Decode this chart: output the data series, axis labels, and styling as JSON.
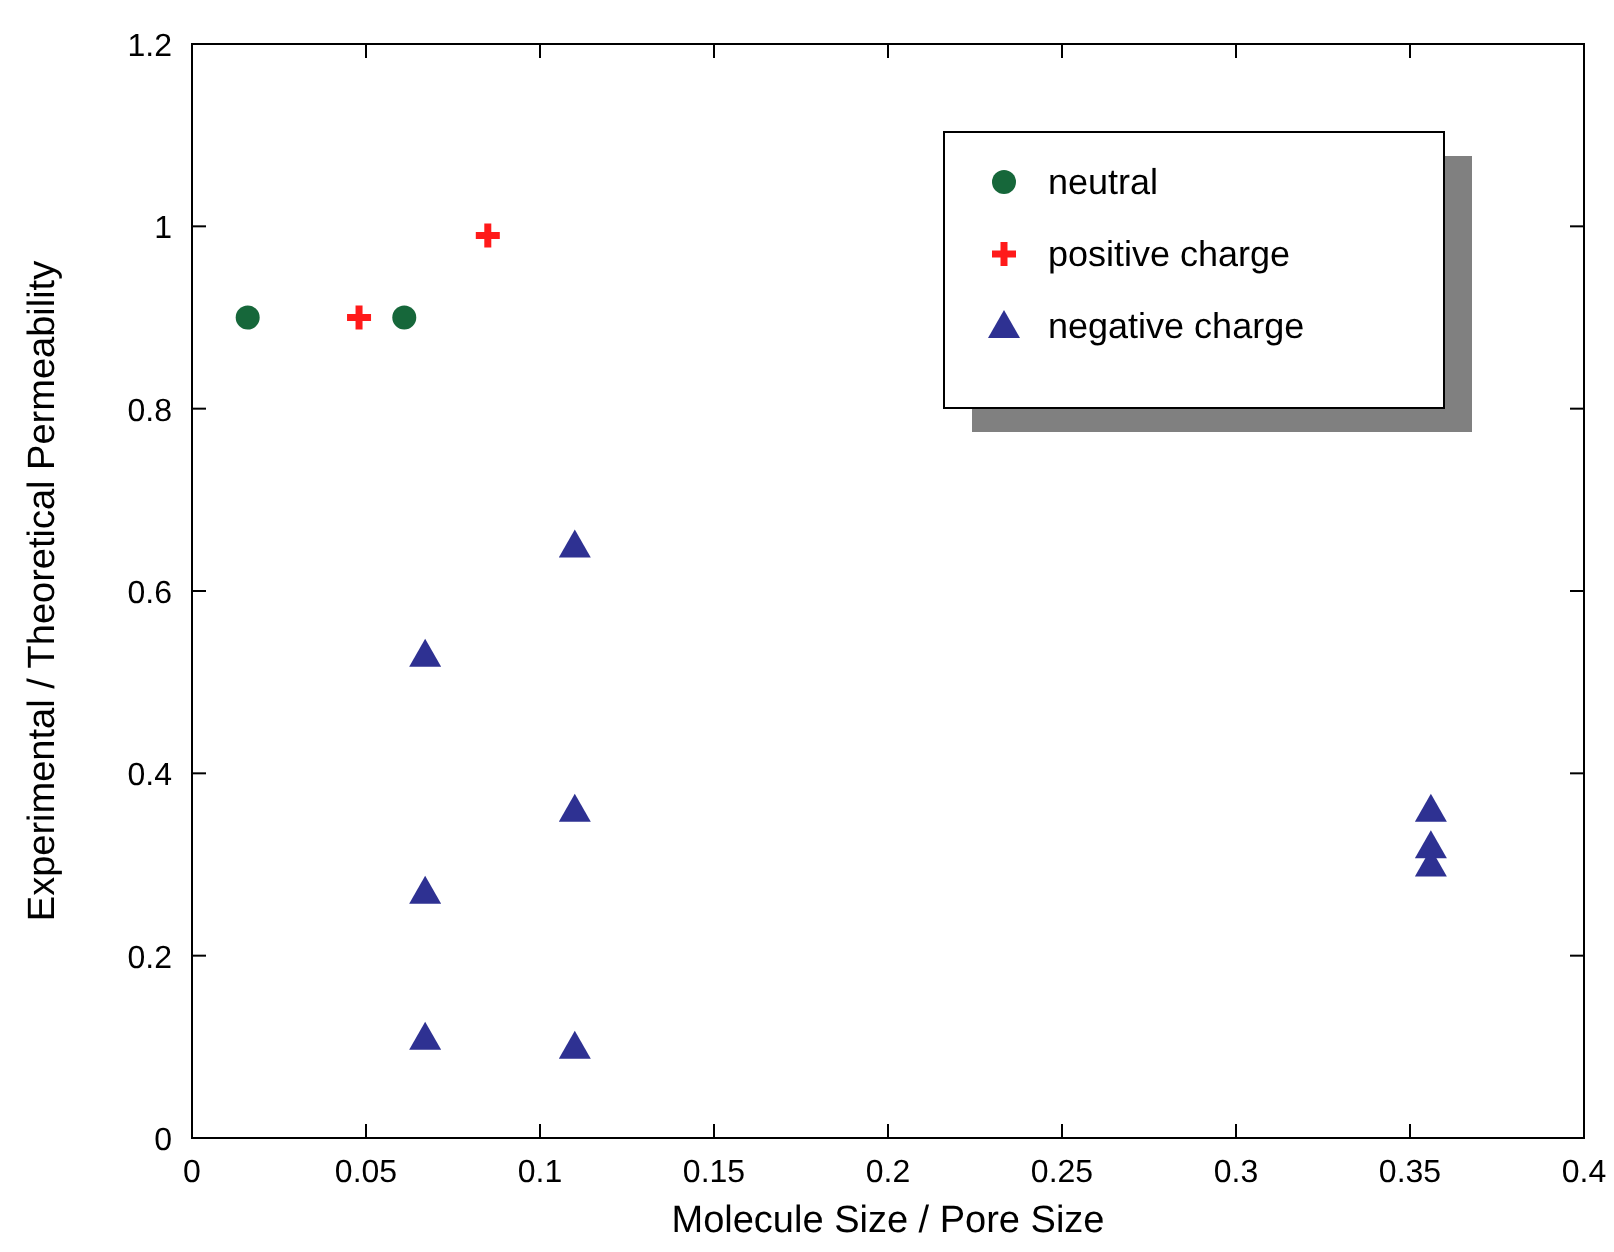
{
  "chart_data": {
    "type": "scatter",
    "xlabel": "Molecule Size / Pore Size",
    "ylabel": "Experimental / Theoretical Permeability",
    "xlim": [
      0,
      0.4
    ],
    "xticks": [
      0,
      0.05,
      0.1,
      0.15,
      0.2,
      0.25,
      0.3,
      0.35,
      0.4
    ],
    "ylim": [
      0,
      1.2
    ],
    "yticks": [
      0,
      0.2,
      0.4,
      0.6,
      0.8,
      1,
      1.2
    ],
    "grid": false,
    "legend": "top right",
    "series": [
      {
        "name": "neutral",
        "color": "#16673a",
        "marker": "circle",
        "x": [
          0.016,
          0.061
        ],
        "values": [
          0.9,
          0.9
        ]
      },
      {
        "name": "positive charge",
        "color": "#ff1a1a",
        "marker": "cross",
        "x": [
          0.048,
          0.085
        ],
        "values": [
          0.9,
          0.99
        ]
      },
      {
        "name": "negative charge",
        "color": "#2e3192",
        "marker": "triangle",
        "x": [
          0.067,
          0.11,
          0.067,
          0.11,
          0.067,
          0.11,
          0.356,
          0.356,
          0.356
        ],
        "values": [
          0.53,
          0.65,
          0.27,
          0.36,
          0.11,
          0.1,
          0.36,
          0.32,
          0.3
        ]
      }
    ]
  }
}
